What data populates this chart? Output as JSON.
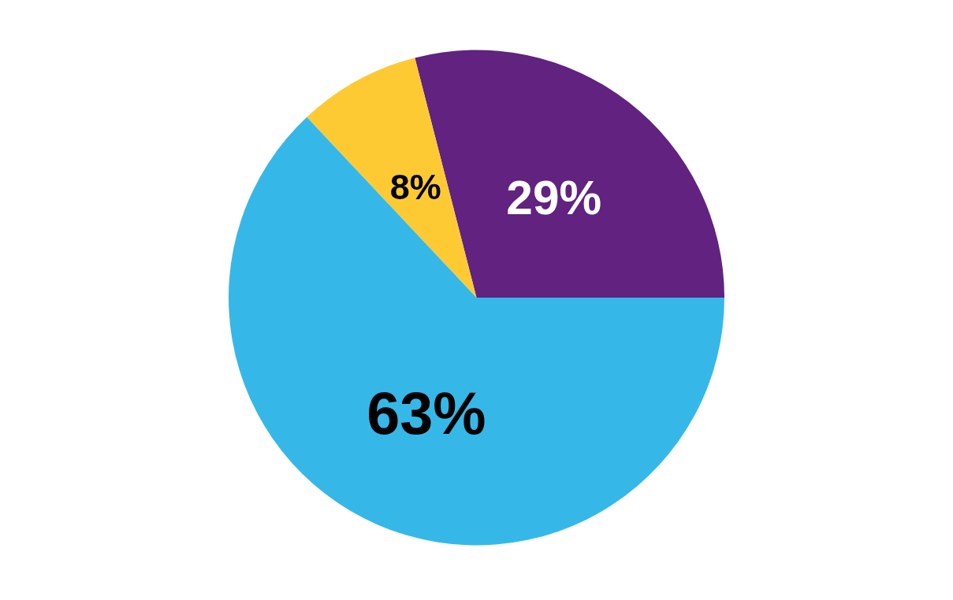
{
  "chart_data": {
    "type": "pie",
    "categories": [
      null,
      null,
      null
    ],
    "values": [
      29,
      8,
      63
    ],
    "colors": [
      "#612280",
      "#fdca33",
      "#35b8e8"
    ],
    "value_labels": [
      "29%",
      "8%",
      "63%"
    ]
  }
}
